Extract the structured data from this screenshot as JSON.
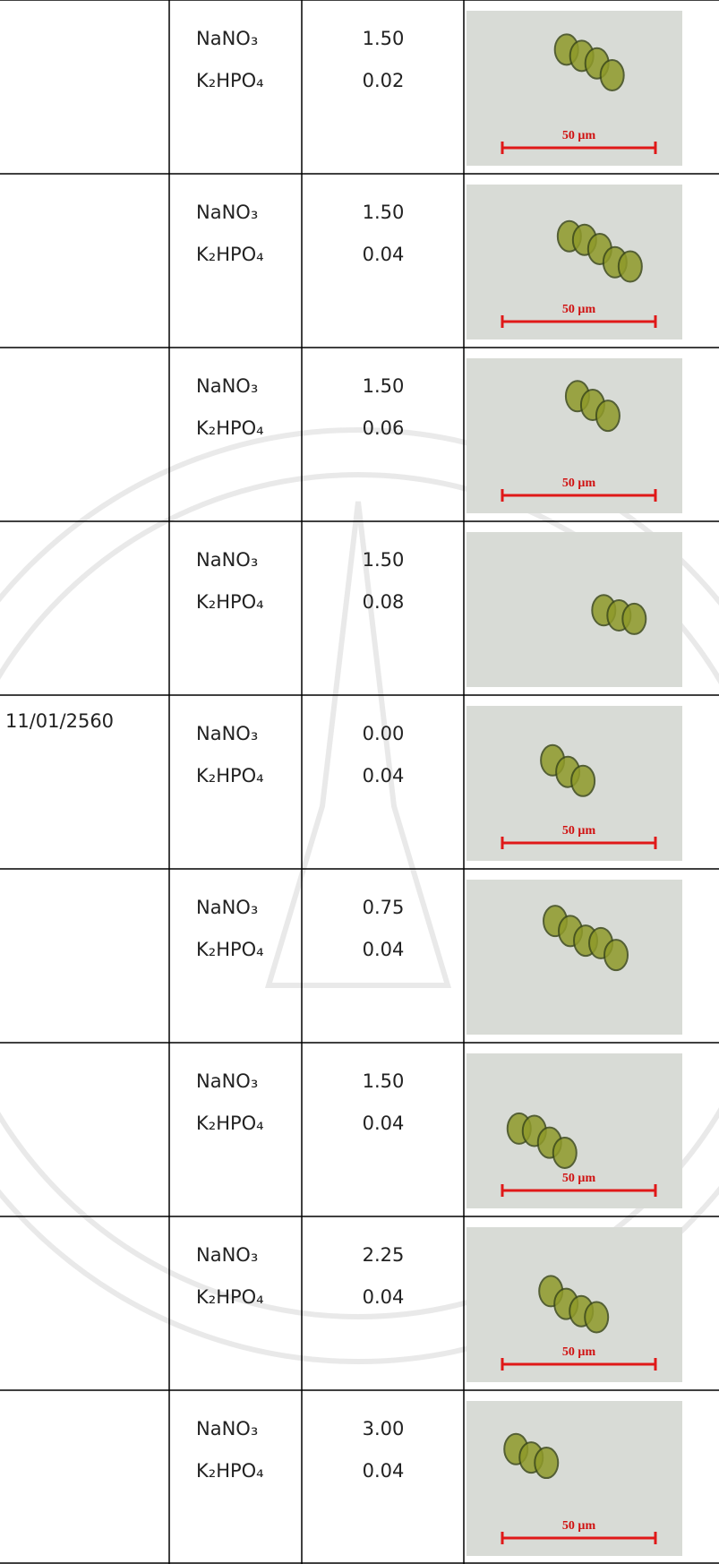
{
  "table": {
    "rows": [
      {
        "chemicals": [
          "NaNO₃",
          "K₂HPO₄"
        ],
        "amounts": [
          "1.50",
          "0.02"
        ],
        "image": {
          "scale_label": "50 µm"
        }
      },
      {
        "chemicals": [
          "NaNO₃",
          "K₂HPO₄"
        ],
        "amounts": [
          "1.50",
          "0.04"
        ],
        "image": {
          "scale_label": "50 µm"
        }
      },
      {
        "chemicals": [
          "NaNO₃",
          "K₂HPO₄"
        ],
        "amounts": [
          "1.50",
          "0.06"
        ],
        "image": {
          "scale_label": "50 µm"
        }
      },
      {
        "chemicals": [
          "NaNO₃",
          "K₂HPO₄"
        ],
        "amounts": [
          "1.50",
          "0.08"
        ],
        "image": {}
      },
      {
        "date": "11/01/2560",
        "chemicals": [
          "NaNO₃",
          "K₂HPO₄"
        ],
        "amounts": [
          "0.00",
          "0.04"
        ],
        "image": {
          "scale_label": "50 µm"
        }
      },
      {
        "chemicals": [
          "NaNO₃",
          "K₂HPO₄"
        ],
        "amounts": [
          "0.75",
          "0.04"
        ],
        "image": {}
      },
      {
        "chemicals": [
          "NaNO₃",
          "K₂HPO₄"
        ],
        "amounts": [
          "1.50",
          "0.04"
        ],
        "image": {
          "scale_label": "50 µm"
        }
      },
      {
        "chemicals": [
          "NaNO₃",
          "K₂HPO₄"
        ],
        "amounts": [
          "2.25",
          "0.04"
        ],
        "image": {
          "scale_label": "50 µm"
        }
      },
      {
        "chemicals": [
          "NaNO₃",
          "K₂HPO₄"
        ],
        "amounts": [
          "3.00",
          "0.04"
        ],
        "image": {
          "scale_label": "50 µm"
        }
      }
    ]
  }
}
